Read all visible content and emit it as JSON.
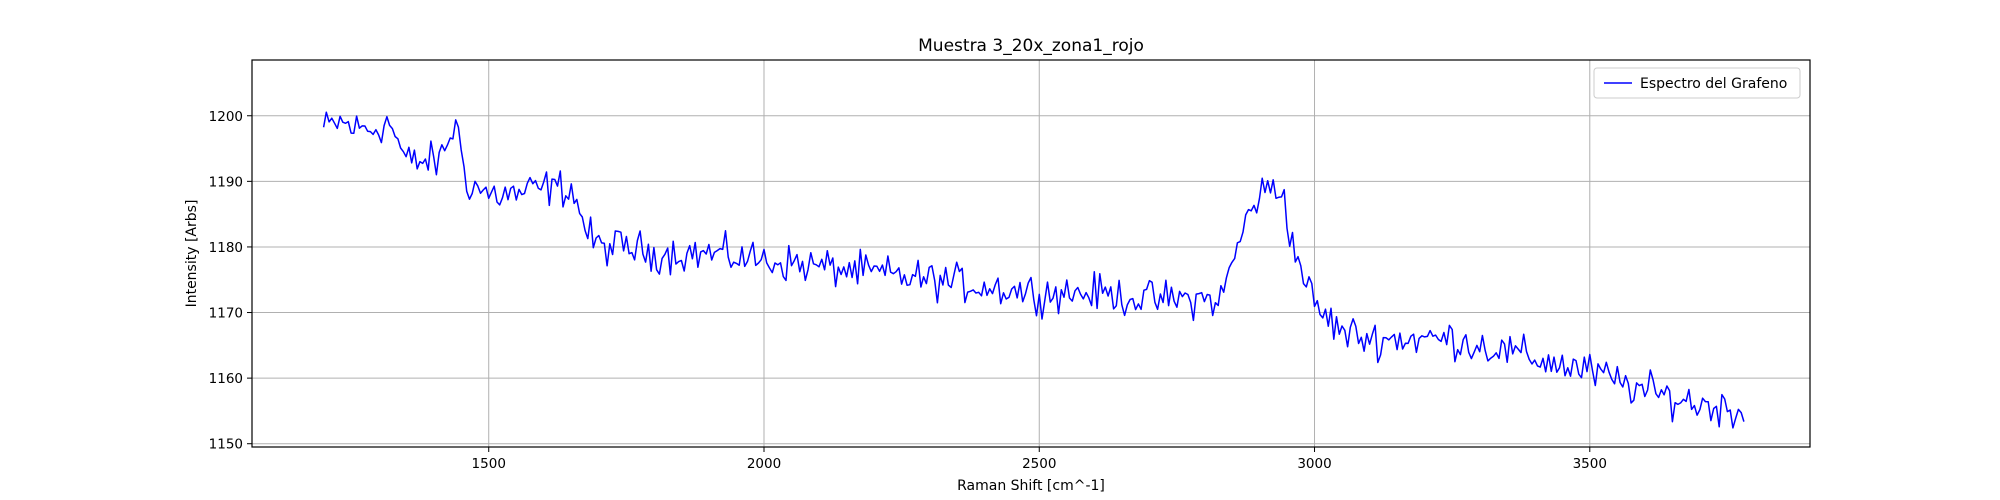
{
  "chart_data": {
    "type": "line",
    "title": "Muestra 3_20x_zona1_rojo",
    "xlabel": "Raman Shift [cm^-1]",
    "ylabel": "Intensity [Arbs]",
    "xlim": [
      1070,
      3900
    ],
    "ylim": [
      1149.5,
      1208.5
    ],
    "xticks": [
      1500,
      2000,
      2500,
      3000,
      3500
    ],
    "yticks": [
      1150,
      1160,
      1170,
      1180,
      1190,
      1200
    ],
    "grid": true,
    "legend_position": "top-right",
    "colors": {
      "series": "#0000ff",
      "grid": "#b0b0b0",
      "axes": "#000000"
    },
    "series": [
      {
        "name": "Espectro del Grafeno",
        "x_start": 1200,
        "x_end": 3780,
        "x_step": 5,
        "anchors": [
          [
            1200,
            1198
          ],
          [
            1230,
            1199
          ],
          [
            1260,
            1198
          ],
          [
            1290,
            1198
          ],
          [
            1320,
            1199
          ],
          [
            1350,
            1193
          ],
          [
            1380,
            1193
          ],
          [
            1410,
            1193
          ],
          [
            1440,
            1199
          ],
          [
            1460,
            1190
          ],
          [
            1480,
            1189
          ],
          [
            1500,
            1188
          ],
          [
            1550,
            1188
          ],
          [
            1600,
            1189
          ],
          [
            1650,
            1189
          ],
          [
            1680,
            1182
          ],
          [
            1700,
            1180
          ],
          [
            1750,
            1180
          ],
          [
            1800,
            1179
          ],
          [
            1900,
            1179
          ],
          [
            2000,
            1178
          ],
          [
            2100,
            1177
          ],
          [
            2200,
            1176
          ],
          [
            2300,
            1175
          ],
          [
            2400,
            1174
          ],
          [
            2500,
            1173
          ],
          [
            2600,
            1173
          ],
          [
            2700,
            1172
          ],
          [
            2800,
            1172
          ],
          [
            2830,
            1172
          ],
          [
            2860,
            1180
          ],
          [
            2885,
            1186
          ],
          [
            2900,
            1188
          ],
          [
            2925,
            1189
          ],
          [
            2945,
            1188
          ],
          [
            2960,
            1180
          ],
          [
            2980,
            1176
          ],
          [
            3000,
            1171
          ],
          [
            3050,
            1167
          ],
          [
            3100,
            1166
          ],
          [
            3200,
            1166
          ],
          [
            3250,
            1166
          ],
          [
            3300,
            1165
          ],
          [
            3400,
            1163
          ],
          [
            3500,
            1161
          ],
          [
            3600,
            1158
          ],
          [
            3700,
            1156
          ],
          [
            3780,
            1155
          ]
        ],
        "noise_amplitude": 3
      }
    ]
  }
}
